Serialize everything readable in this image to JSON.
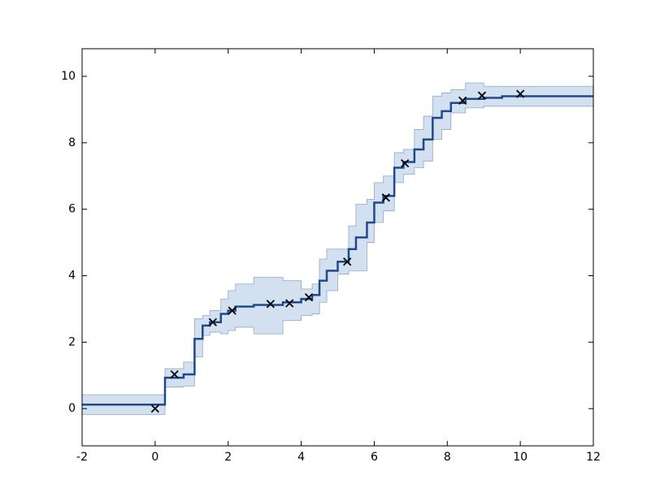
{
  "chart_data": {
    "type": "step_band_scatter",
    "xlim": [
      -2,
      12
    ],
    "ylim": [
      -1.12,
      10.83
    ],
    "xticks": [
      -2,
      0,
      2,
      4,
      6,
      8,
      10,
      12
    ],
    "yticks": [
      0,
      2,
      4,
      6,
      8,
      10
    ],
    "line": {
      "color": "#1f4a8a",
      "x": [
        -2,
        0.27,
        0.78,
        1.08,
        1.3,
        1.5,
        1.8,
        2.0,
        2.2,
        2.7,
        3.5,
        4.0,
        4.3,
        4.5,
        4.7,
        5.0,
        5.3,
        5.5,
        5.8,
        6.0,
        6.25,
        6.55,
        6.8,
        7.1,
        7.35,
        7.6,
        7.85,
        8.1,
        8.5,
        9.0,
        9.5,
        12
      ],
      "values": [
        0.12,
        0.93,
        1.03,
        2.1,
        2.5,
        2.6,
        2.85,
        2.95,
        3.07,
        3.12,
        3.2,
        3.3,
        3.42,
        3.85,
        4.15,
        4.42,
        4.8,
        5.15,
        5.6,
        6.2,
        6.4,
        7.25,
        7.42,
        7.8,
        8.1,
        8.75,
        8.95,
        9.2,
        9.32,
        9.35,
        9.4,
        9.4
      ]
    },
    "band": {
      "color": "#d3e0ef",
      "edge_color": "#8ea8cc",
      "upper": [
        0.42,
        1.2,
        1.4,
        2.7,
        2.8,
        2.95,
        3.3,
        3.55,
        3.75,
        3.95,
        3.85,
        3.6,
        3.75,
        4.5,
        4.8,
        4.8,
        5.5,
        6.15,
        6.3,
        6.8,
        7.0,
        7.7,
        7.8,
        8.4,
        8.8,
        9.4,
        9.5,
        9.6,
        9.8,
        9.7,
        9.7,
        9.7
      ],
      "lower": [
        -0.18,
        0.65,
        0.68,
        1.55,
        2.2,
        2.3,
        2.25,
        2.35,
        2.45,
        2.25,
        2.65,
        2.8,
        2.85,
        3.2,
        3.55,
        4.05,
        4.15,
        4.15,
        5.0,
        5.6,
        5.95,
        6.8,
        7.05,
        7.25,
        7.45,
        8.1,
        8.4,
        8.9,
        9.05,
        9.1,
        9.1,
        9.1
      ]
    },
    "points": {
      "color": "#000000",
      "x": [
        0,
        0.53,
        1.58,
        2.11,
        3.16,
        3.68,
        4.21,
        5.26,
        6.32,
        6.84,
        8.42,
        8.95,
        10
      ],
      "values": [
        0,
        1.03,
        2.6,
        2.95,
        3.15,
        3.17,
        3.35,
        4.42,
        6.35,
        7.38,
        9.27,
        9.42,
        9.47
      ]
    }
  }
}
